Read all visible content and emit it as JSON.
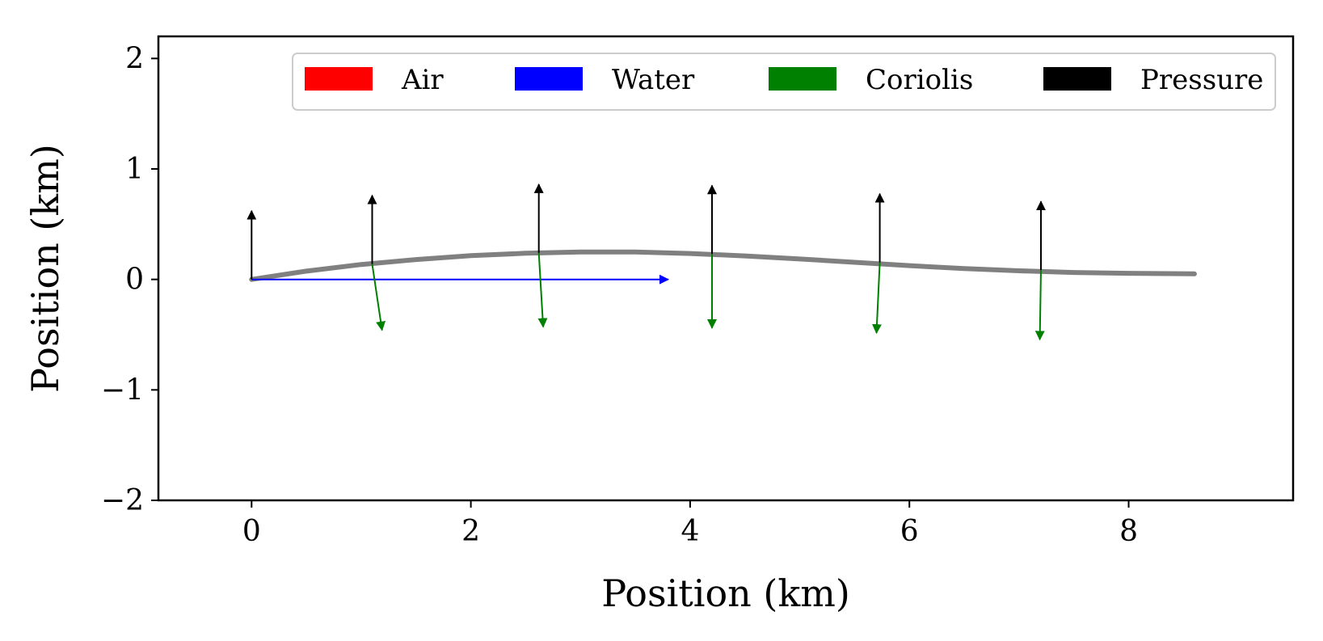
{
  "chart_data": {
    "type": "line",
    "title": "",
    "xlabel": "Position (km)",
    "ylabel": "Position (km)",
    "xlim": [
      -0.85,
      9.5
    ],
    "ylim": [
      -2,
      2.2
    ],
    "xticks": [
      0,
      2,
      4,
      6,
      8
    ],
    "yticks": [
      -2,
      -1,
      0,
      1,
      2
    ],
    "xtick_labels": [
      "0",
      "2",
      "4",
      "6",
      "8"
    ],
    "ytick_labels": [
      "−2",
      "−1",
      "0",
      "1",
      "2"
    ],
    "grid": false,
    "legend_position": "top-right",
    "legend": [
      {
        "name": "Air",
        "color": "#ff0000"
      },
      {
        "name": "Water",
        "color": "#0000ff"
      },
      {
        "name": "Coriolis",
        "color": "#008000"
      },
      {
        "name": "Pressure",
        "color": "#000000"
      }
    ],
    "trajectory": {
      "color": "#808080",
      "x": [
        0,
        0.5,
        1.0,
        1.5,
        2.0,
        2.5,
        3.0,
        3.5,
        4.0,
        4.5,
        5.0,
        5.5,
        6.0,
        6.5,
        7.0,
        7.5,
        8.0,
        8.6
      ],
      "y": [
        0,
        0.075,
        0.135,
        0.18,
        0.215,
        0.237,
        0.248,
        0.248,
        0.235,
        0.213,
        0.185,
        0.155,
        0.125,
        0.098,
        0.078,
        0.063,
        0.055,
        0.05
      ]
    },
    "vectors": [
      {
        "series": "Water",
        "color": "#0000ff",
        "x": 0,
        "y": 0,
        "dx": 3.8,
        "dy": 0
      },
      {
        "series": "Pressure",
        "color": "#000000",
        "x": 0,
        "y": 0,
        "dx": 0,
        "dy": 0.62
      },
      {
        "series": "Pressure",
        "color": "#000000",
        "x": 1.1,
        "y": 0.14,
        "dx": 0,
        "dy": 0.62
      },
      {
        "series": "Pressure",
        "color": "#000000",
        "x": 2.62,
        "y": 0.24,
        "dx": 0,
        "dy": 0.62
      },
      {
        "series": "Pressure",
        "color": "#000000",
        "x": 4.2,
        "y": 0.23,
        "dx": 0,
        "dy": 0.62
      },
      {
        "series": "Pressure",
        "color": "#000000",
        "x": 5.73,
        "y": 0.155,
        "dx": 0,
        "dy": 0.62
      },
      {
        "series": "Pressure",
        "color": "#000000",
        "x": 7.2,
        "y": 0.085,
        "dx": 0,
        "dy": 0.62
      },
      {
        "series": "Coriolis",
        "color": "#008000",
        "x": 1.1,
        "y": 0.14,
        "dx": 0.09,
        "dy": -0.6
      },
      {
        "series": "Coriolis",
        "color": "#008000",
        "x": 2.62,
        "y": 0.24,
        "dx": 0.04,
        "dy": -0.67
      },
      {
        "series": "Coriolis",
        "color": "#008000",
        "x": 4.2,
        "y": 0.23,
        "dx": 0.0,
        "dy": -0.67
      },
      {
        "series": "Coriolis",
        "color": "#008000",
        "x": 5.73,
        "y": 0.155,
        "dx": -0.03,
        "dy": -0.64
      },
      {
        "series": "Coriolis",
        "color": "#008000",
        "x": 7.2,
        "y": 0.085,
        "dx": -0.01,
        "dy": -0.63
      }
    ]
  }
}
